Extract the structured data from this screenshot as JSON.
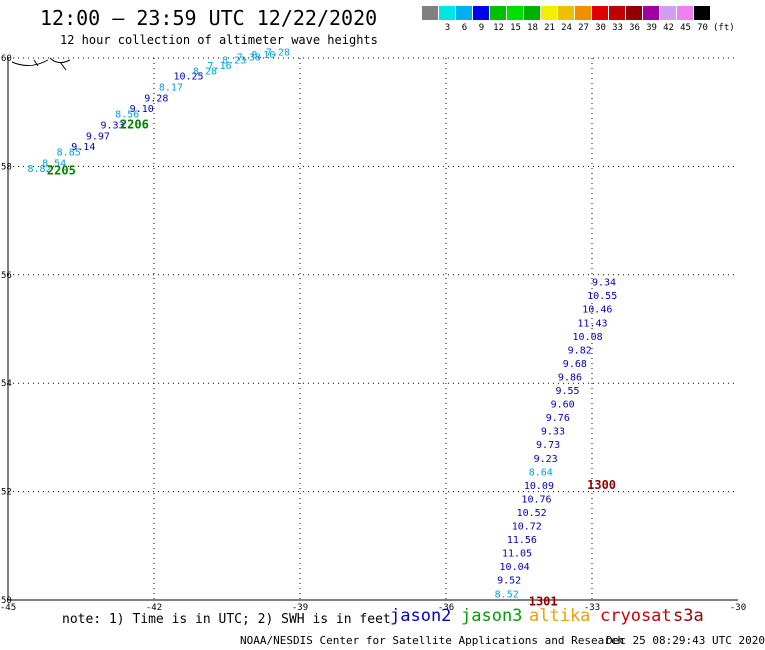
{
  "header": {
    "title": "12:00 – 23:59 UTC 12/22/2020",
    "subtitle": "12 hour collection of altimeter wave heights"
  },
  "color_scale": {
    "unit_label": "(ft)",
    "swatches": [
      {
        "color": "#808080",
        "label": ""
      },
      {
        "color": "#00e6e6",
        "label": "3"
      },
      {
        "color": "#00b0f0",
        "label": "6"
      },
      {
        "color": "#0000f0",
        "label": "9"
      },
      {
        "color": "#00c000",
        "label": "12"
      },
      {
        "color": "#00e000",
        "label": "15"
      },
      {
        "color": "#00b000",
        "label": "18"
      },
      {
        "color": "#f0f000",
        "label": "21"
      },
      {
        "color": "#f0c000",
        "label": "24"
      },
      {
        "color": "#f09000",
        "label": "27"
      },
      {
        "color": "#e00000",
        "label": "30"
      },
      {
        "color": "#c00000",
        "label": "33"
      },
      {
        "color": "#900000",
        "label": "36"
      },
      {
        "color": "#a000a0",
        "label": "39"
      },
      {
        "color": "#d0a0f0",
        "label": "42"
      },
      {
        "color": "#f080f0",
        "label": "45"
      },
      {
        "color": "#000000",
        "label": "70"
      }
    ]
  },
  "chart_data": {
    "type": "scatter",
    "xlim": [
      -45,
      -30
    ],
    "ylim": [
      50,
      60
    ],
    "x_ticks": [
      "-45",
      "-42",
      "-39",
      "-36",
      "-33",
      "-30"
    ],
    "y_ticks": [
      "50",
      "52",
      "54",
      "56",
      "58",
      "60"
    ],
    "grid": true,
    "tracks": [
      {
        "points": [
          {
            "lon": -44.6,
            "lat": 57.9,
            "value": "8.82",
            "color": "#00a0e0"
          },
          {
            "lon": -44.3,
            "lat": 58.0,
            "value": "8.54",
            "color": "#00a0e0"
          },
          {
            "lon": -44.0,
            "lat": 58.2,
            "value": "8.85",
            "color": "#00a0e0"
          },
          {
            "lon": -43.7,
            "lat": 58.3,
            "value": "9.14",
            "color": "#0000c0"
          },
          {
            "lon": -43.4,
            "lat": 58.5,
            "value": "9.97",
            "color": "#0000c0"
          },
          {
            "lon": -43.1,
            "lat": 58.7,
            "value": "9.33",
            "color": "#0000c0"
          },
          {
            "lon": -42.8,
            "lat": 58.9,
            "value": "8.56",
            "color": "#00a0e0"
          },
          {
            "lon": -42.5,
            "lat": 59.0,
            "value": "9.10",
            "color": "#0000c0"
          },
          {
            "lon": -42.2,
            "lat": 59.2,
            "value": "9.28",
            "color": "#0000c0"
          },
          {
            "lon": -41.9,
            "lat": 59.4,
            "value": "8.17",
            "color": "#00a0e0"
          },
          {
            "lon": -41.6,
            "lat": 59.6,
            "value": "10.25",
            "color": "#0000c0"
          },
          {
            "lon": -41.2,
            "lat": 59.7,
            "value": "8.28",
            "color": "#00a0e0"
          },
          {
            "lon": -40.9,
            "lat": 59.8,
            "value": "7.16",
            "color": "#00a0e0"
          },
          {
            "lon": -40.6,
            "lat": 59.9,
            "value": "8.23",
            "color": "#00a0e0"
          },
          {
            "lon": -40.3,
            "lat": 59.95,
            "value": "7.38",
            "color": "#00a0e0"
          },
          {
            "lon": -40.0,
            "lat": 60.0,
            "value": "8.10",
            "color": "#00a0e0"
          },
          {
            "lon": -39.7,
            "lat": 60.05,
            "value": "7.28",
            "color": "#00a0e0"
          }
        ],
        "time_labels": [
          {
            "lon": -44.2,
            "lat": 57.85,
            "text": "2205",
            "color": "#008000"
          },
          {
            "lon": -42.7,
            "lat": 58.7,
            "text": "2206",
            "color": "#008000"
          }
        ]
      },
      {
        "points": [
          {
            "lon": -35.0,
            "lat": 50.05,
            "value": "8.52",
            "color": "#00a0e0"
          },
          {
            "lon": -34.95,
            "lat": 50.3,
            "value": "9.52",
            "color": "#0000c0"
          },
          {
            "lon": -34.9,
            "lat": 50.55,
            "value": "10.04",
            "color": "#0000c0"
          },
          {
            "lon": -34.85,
            "lat": 50.8,
            "value": "11.05",
            "color": "#0000c0"
          },
          {
            "lon": -34.75,
            "lat": 51.05,
            "value": "11.56",
            "color": "#0000c0"
          },
          {
            "lon": -34.65,
            "lat": 51.3,
            "value": "10.72",
            "color": "#0000c0"
          },
          {
            "lon": -34.55,
            "lat": 51.55,
            "value": "10.52",
            "color": "#0000c0"
          },
          {
            "lon": -34.45,
            "lat": 51.8,
            "value": "10.76",
            "color": "#0000c0"
          },
          {
            "lon": -34.4,
            "lat": 52.05,
            "value": "10.09",
            "color": "#0000c0"
          },
          {
            "lon": -34.3,
            "lat": 52.3,
            "value": "8.64",
            "color": "#00a0e0"
          },
          {
            "lon": -34.2,
            "lat": 52.55,
            "value": "9.23",
            "color": "#0000c0"
          },
          {
            "lon": -34.15,
            "lat": 52.8,
            "value": "9.73",
            "color": "#0000c0"
          },
          {
            "lon": -34.05,
            "lat": 53.05,
            "value": "9.33",
            "color": "#0000c0"
          },
          {
            "lon": -33.95,
            "lat": 53.3,
            "value": "9.76",
            "color": "#0000c0"
          },
          {
            "lon": -33.85,
            "lat": 53.55,
            "value": "9.60",
            "color": "#0000c0"
          },
          {
            "lon": -33.75,
            "lat": 53.8,
            "value": "9.55",
            "color": "#0000c0"
          },
          {
            "lon": -33.7,
            "lat": 54.05,
            "value": "9.86",
            "color": "#0000c0"
          },
          {
            "lon": -33.6,
            "lat": 54.3,
            "value": "9.68",
            "color": "#0000c0"
          },
          {
            "lon": -33.5,
            "lat": 54.55,
            "value": "9.82",
            "color": "#0000c0"
          },
          {
            "lon": -33.4,
            "lat": 54.8,
            "value": "10.08",
            "color": "#0000c0"
          },
          {
            "lon": -33.3,
            "lat": 55.05,
            "value": "11.43",
            "color": "#0000c0"
          },
          {
            "lon": -33.2,
            "lat": 55.3,
            "value": "10.46",
            "color": "#0000c0"
          },
          {
            "lon": -33.1,
            "lat": 55.55,
            "value": "10.55",
            "color": "#0000c0"
          },
          {
            "lon": -33.0,
            "lat": 55.8,
            "value": "9.34",
            "color": "#0000c0"
          }
        ],
        "time_labels": [
          {
            "lon": -33.1,
            "lat": 52.05,
            "text": "1300",
            "color": "#900000"
          },
          {
            "lon": -34.3,
            "lat": 49.9,
            "text": "1301",
            "color": "#900000"
          }
        ]
      }
    ]
  },
  "legend": {
    "note": "note:  1) Time is in UTC;  2) SWH is in feet",
    "satellites": [
      {
        "name": "jason2",
        "color": "#0000d0"
      },
      {
        "name": "jason3",
        "color": "#00a000"
      },
      {
        "name": "altika",
        "color": "#f0a000"
      },
      {
        "name": "cryosat",
        "color": "#d00000"
      },
      {
        "name": "s3a",
        "color": "#a00000"
      }
    ]
  },
  "footer": {
    "center": "NOAA/NESDIS Center for Satellite Applications and Research",
    "right": "Dec 25 08:29:43 UTC 2020"
  }
}
